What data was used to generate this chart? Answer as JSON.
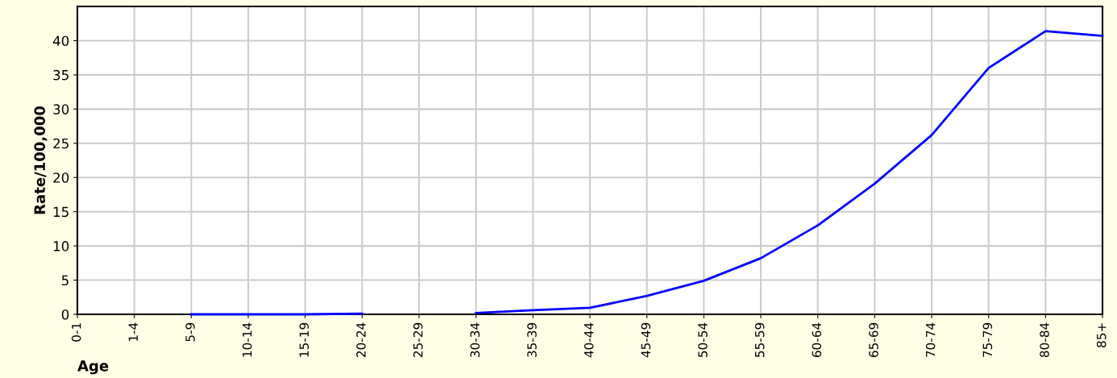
{
  "chart_data": {
    "type": "line",
    "xlabel": "Age",
    "ylabel": "Rate/100,000",
    "categories": [
      "0-1",
      "1-4",
      "5-9",
      "10-14",
      "15-19",
      "20-24",
      "25-29",
      "30-34",
      "35-39",
      "40-44",
      "45-49",
      "50-54",
      "55-59",
      "60-64",
      "65-69",
      "70-74",
      "75-79",
      "80-84",
      "85+"
    ],
    "series": [
      {
        "color": "#0000ff",
        "values": [
          null,
          null,
          0,
          0,
          0,
          0.1,
          null,
          0.2,
          0.6,
          0.95,
          2.7,
          4.9,
          8.2,
          13.0,
          19.1,
          26.2,
          36.0,
          41.4,
          40.7
        ]
      }
    ],
    "ylim": [
      0,
      45
    ],
    "yticks": [
      0,
      5,
      10,
      15,
      20,
      25,
      30,
      35,
      40
    ],
    "grid": true,
    "marker": "none",
    "line_style": "solid"
  }
}
